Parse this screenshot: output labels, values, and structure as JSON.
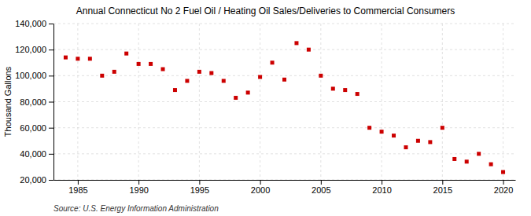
{
  "chart_data": {
    "type": "scatter",
    "title": "Annual Connecticut No 2 Fuel Oil / Heating Oil Sales/Deliveries to Commercial Consumers",
    "ylabel": "Thousand Gallons",
    "annotation": "Source: U.S. Energy Information Administration",
    "color": "#cc0000",
    "marker": "square",
    "grid": true,
    "x": [
      1984,
      1985,
      1986,
      1987,
      1988,
      1989,
      1990,
      1991,
      1992,
      1993,
      1994,
      1995,
      1996,
      1997,
      1998,
      1999,
      2000,
      2001,
      2002,
      2003,
      2004,
      2005,
      2006,
      2007,
      2008,
      2009,
      2010,
      2011,
      2012,
      2013,
      2014,
      2015,
      2016,
      2017,
      2018,
      2019,
      2020
    ],
    "values": [
      114000,
      113000,
      113000,
      100000,
      103000,
      117000,
      109000,
      109000,
      105000,
      89000,
      96000,
      103000,
      102000,
      96000,
      83000,
      87000,
      99000,
      110000,
      97000,
      125000,
      120000,
      100000,
      90000,
      89000,
      86000,
      60000,
      57000,
      54000,
      45000,
      50000,
      49000,
      60000,
      36000,
      34000,
      40000,
      32000,
      26000
    ],
    "xlim": [
      1983,
      2021
    ],
    "ylim": [
      20000,
      140000
    ],
    "xticks": [
      1985,
      1990,
      1995,
      2000,
      2005,
      2010,
      2015,
      2020
    ],
    "yticks": [
      {
        "value": 20000,
        "label": "20,000"
      },
      {
        "value": 40000,
        "label": "40,000"
      },
      {
        "value": 60000,
        "label": "60,000"
      },
      {
        "value": 80000,
        "label": "80,000"
      },
      {
        "value": 100000,
        "label": "100,000"
      },
      {
        "value": 120000,
        "label": "120,000"
      },
      {
        "value": 140000,
        "label": "140,000"
      }
    ]
  }
}
